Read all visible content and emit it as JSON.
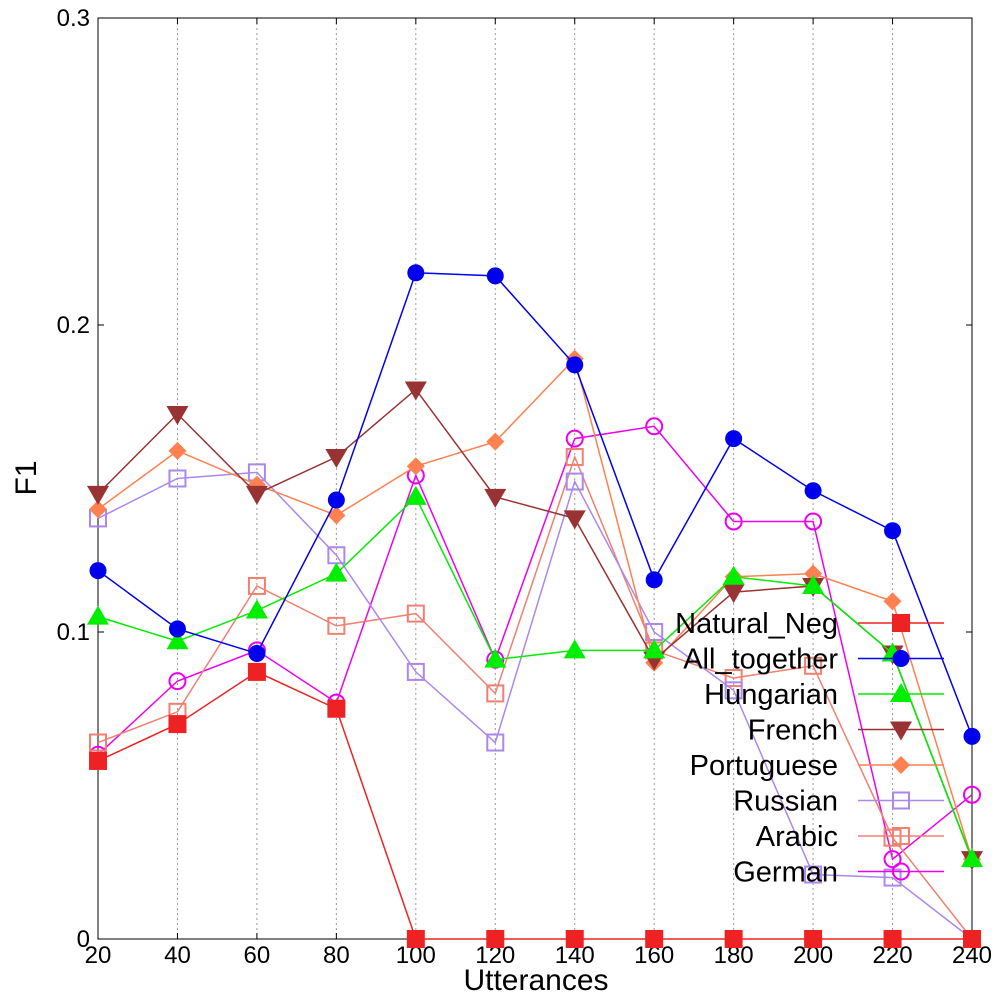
{
  "chart_data": {
    "type": "line",
    "xlabel": "Utterances",
    "ylabel": "F1",
    "xlim": [
      20,
      240
    ],
    "ylim": [
      0,
      0.3
    ],
    "x_ticks": [
      20,
      40,
      60,
      80,
      100,
      120,
      140,
      160,
      180,
      200,
      220,
      240
    ],
    "y_ticks": [
      0,
      0.1,
      0.2,
      0.3
    ],
    "y_tick_labels": [
      "0",
      "0.1",
      "0.2",
      "0.3"
    ],
    "grid": "vertical dotted",
    "legend_position": "lower-right",
    "x": [
      20,
      40,
      60,
      80,
      100,
      120,
      140,
      160,
      180,
      200,
      220,
      240
    ],
    "series": [
      {
        "name": "Natural_Neg",
        "color": "#ee2222",
        "marker": "square-filled",
        "values": [
          0.058,
          0.07,
          0.087,
          0.075,
          0.0,
          0.0,
          0.0,
          0.0,
          0.0,
          0.0,
          0.0,
          0.0
        ]
      },
      {
        "name": "All_together",
        "color": "#0000ee",
        "marker": "circle-filled",
        "values": [
          0.12,
          0.101,
          0.093,
          0.143,
          0.217,
          0.216,
          0.187,
          0.117,
          0.163,
          0.146,
          0.133,
          0.066
        ]
      },
      {
        "name": "Hungarian",
        "color": "#00ee00",
        "marker": "triangle-up-filled",
        "values": [
          0.105,
          0.097,
          0.107,
          0.119,
          0.144,
          0.091,
          0.094,
          0.094,
          0.118,
          0.115,
          0.093,
          0.026
        ]
      },
      {
        "name": "French",
        "color": "#993333",
        "marker": "triangle-down-filled",
        "values": [
          0.145,
          0.171,
          0.145,
          0.157,
          0.179,
          0.144,
          0.137,
          0.091,
          0.113,
          0.115,
          0.093,
          0.026
        ]
      },
      {
        "name": "Portuguese",
        "color": "#ff8050",
        "marker": "diamond-filled",
        "values": [
          0.14,
          0.159,
          0.148,
          0.138,
          0.154,
          0.162,
          0.189,
          0.09,
          0.118,
          0.119,
          0.11,
          0.026
        ]
      },
      {
        "name": "Russian",
        "color": "#aa88ee",
        "marker": "square-open",
        "values": [
          0.137,
          0.15,
          0.152,
          0.125,
          0.087,
          0.064,
          0.149,
          0.1,
          0.081,
          0.021,
          0.02,
          0.0
        ]
      },
      {
        "name": "Arabic",
        "color": "#f08070",
        "marker": "square-open",
        "values": [
          0.064,
          0.074,
          0.115,
          0.102,
          0.106,
          0.08,
          0.157,
          0.094,
          0.085,
          0.089,
          0.033,
          0.0
        ]
      },
      {
        "name": "German",
        "color": "#ee00ee",
        "marker": "circle-open",
        "values": [
          0.06,
          0.084,
          0.094,
          0.077,
          0.151,
          0.091,
          0.163,
          0.167,
          0.136,
          0.136,
          0.026,
          0.047
        ]
      }
    ]
  }
}
